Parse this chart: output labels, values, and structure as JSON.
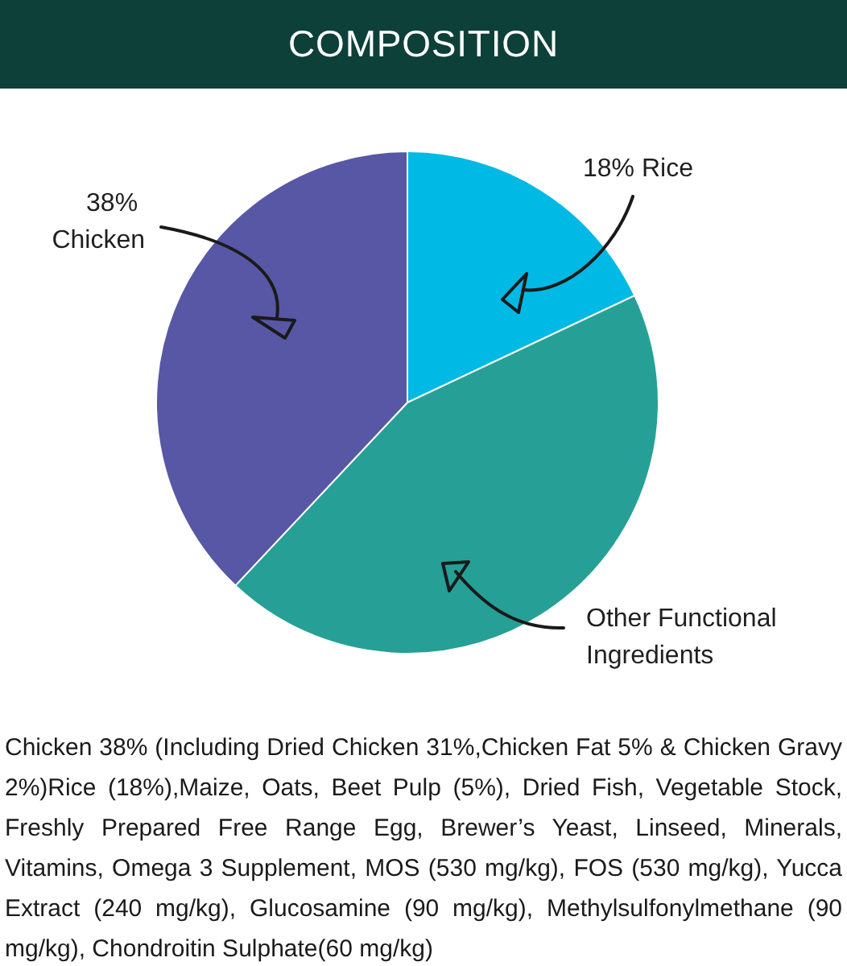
{
  "chart_data": {
    "type": "pie",
    "title": "COMPOSITION",
    "categories": [
      "Rice",
      "Other Functional Ingredients",
      "Chicken"
    ],
    "values": [
      18,
      44,
      38
    ],
    "value_labels": [
      "18%",
      null,
      "38%"
    ],
    "colors": [
      "#00b9e4",
      "#26a096",
      "#5857a5"
    ],
    "annotations": [
      "Chicken 38% (Including Dried Chicken 31%,Chicken Fat 5% & Chicken Gravy 2%)Rice (18%),Maize, Oats, Beet Pulp (5%), Dried Fish, Vegetable Stock, Freshly Prepared Free Range Egg, Brewer’s Yeast, Linseed, Minerals, Vitamins, Omega 3 Supplement, MOS (530 mg/kg), FOS (530 mg/kg), Yucca Extract (240 mg/kg), Glucosamine (90 mg/kg), Methylsulfonylmethane (90 mg/kg), Chondroitin Sulphate(60 mg/kg)"
    ]
  }
}
